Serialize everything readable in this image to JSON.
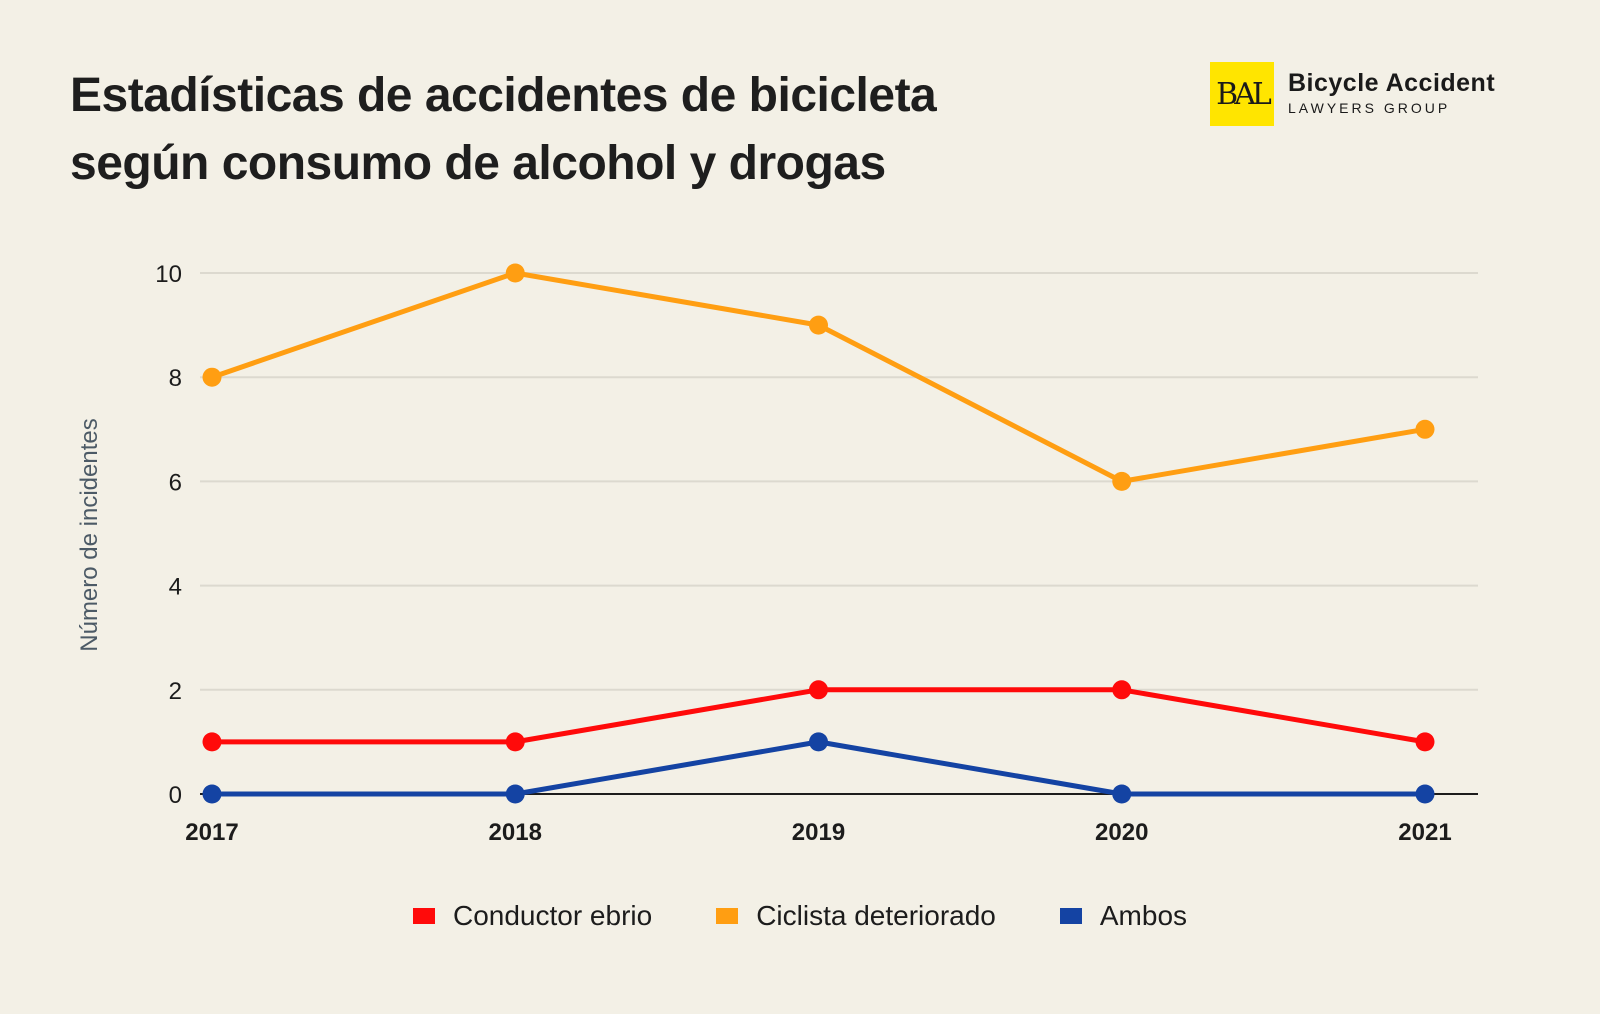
{
  "header": {
    "title_line1": "Estadísticas de accidentes de bicicleta",
    "title_line2": "según consumo de alcohol y drogas"
  },
  "logo": {
    "mark": "BAL",
    "main": "Bicycle Accident",
    "sub": "LAWYERS GROUP",
    "color": "#ffe500"
  },
  "chart_data": {
    "type": "line",
    "title": "Estadísticas de accidentes de bicicleta según consumo de alcohol y drogas",
    "xlabel": "",
    "ylabel": "Número de incidentes",
    "categories": [
      "2017",
      "2018",
      "2019",
      "2020",
      "2021"
    ],
    "yticks": [
      0,
      2,
      4,
      6,
      8,
      10
    ],
    "ylim": [
      0,
      10
    ],
    "grid": true,
    "legend_position": "bottom",
    "series": [
      {
        "name": "Conductor ebrio",
        "color": "#ff0a0a",
        "values": [
          1,
          1,
          2,
          2,
          1
        ]
      },
      {
        "name": "Ciclista deteriorado",
        "color": "#ff9e12",
        "values": [
          8,
          10,
          9,
          6,
          7
        ]
      },
      {
        "name": "Ambos",
        "color": "#1443a3",
        "values": [
          0,
          0,
          1,
          0,
          0
        ]
      }
    ]
  }
}
